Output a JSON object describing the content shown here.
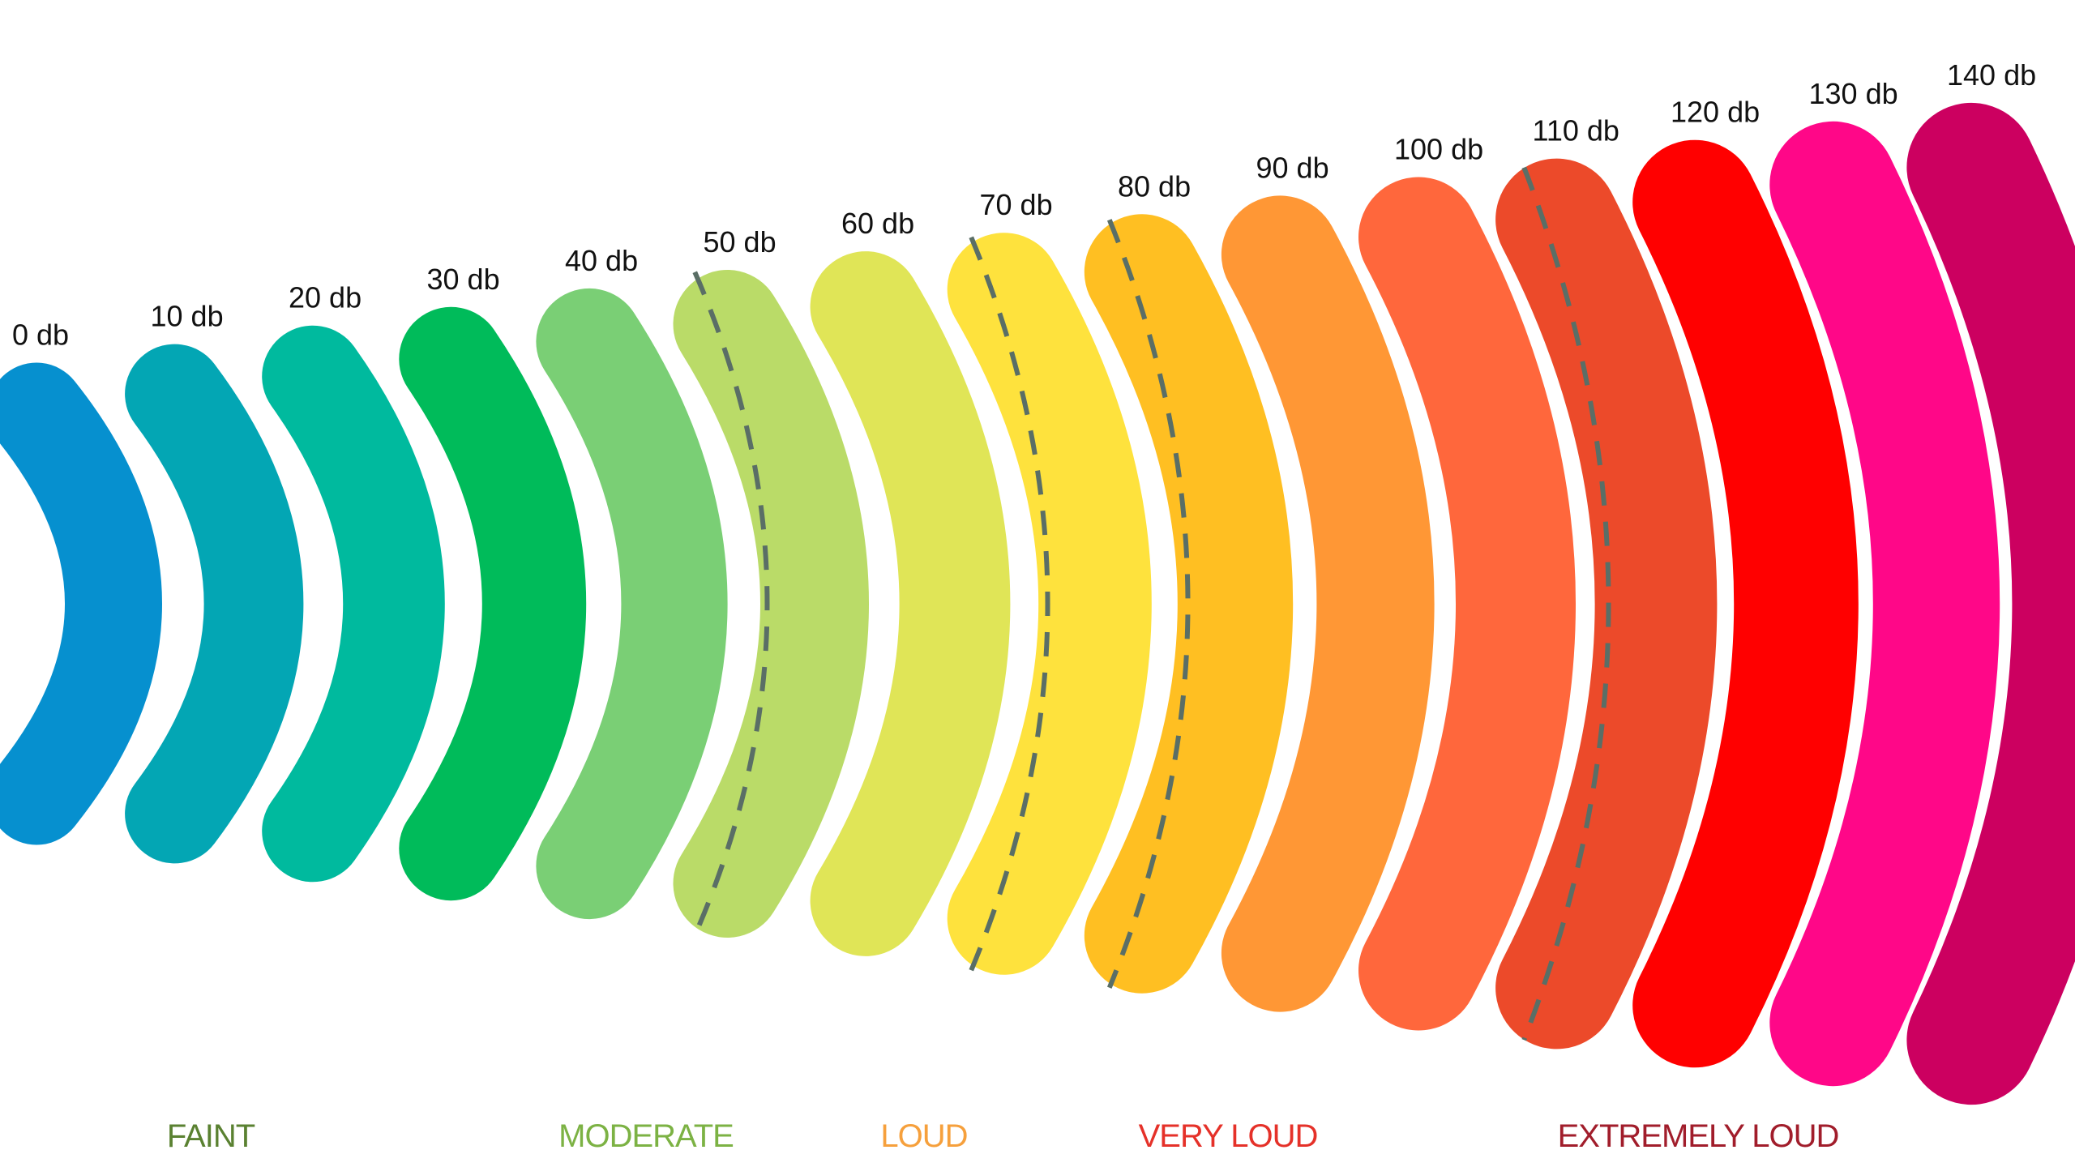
{
  "levels": [
    {
      "label": "0 db",
      "color": "#0690CF"
    },
    {
      "label": "10 db",
      "color": "#03A6B4"
    },
    {
      "label": "20 db",
      "color": "#00BA9E"
    },
    {
      "label": "30 db",
      "color": "#00BB5A"
    },
    {
      "label": "40 db",
      "color": "#7ACF75"
    },
    {
      "label": "50 db",
      "color": "#BADB68"
    },
    {
      "label": "60 db",
      "color": "#E0E557"
    },
    {
      "label": "70 db",
      "color": "#FEE23D"
    },
    {
      "label": "80 db",
      "color": "#FFBF22"
    },
    {
      "label": "90 db",
      "color": "#FF9735"
    },
    {
      "label": "100 db",
      "color": "#FF673C"
    },
    {
      "label": "110 db",
      "color": "#EC4A2A"
    },
    {
      "label": "120 db",
      "color": "#FF0000"
    },
    {
      "label": "130 db",
      "color": "#FF0788"
    },
    {
      "label": "140 db",
      "color": "#CC0060"
    }
  ],
  "categories": [
    {
      "label": "FAINT",
      "color": "#5A8131"
    },
    {
      "label": "MODERATE",
      "color": "#7CB244"
    },
    {
      "label": "LOUD",
      "color": "#F6A03C"
    },
    {
      "label": "VERY LOUD",
      "color": "#E53129"
    },
    {
      "label": "EXTREMELY LOUD",
      "color": "#A11D2B"
    }
  ],
  "divider_color": "#5A6E66"
}
